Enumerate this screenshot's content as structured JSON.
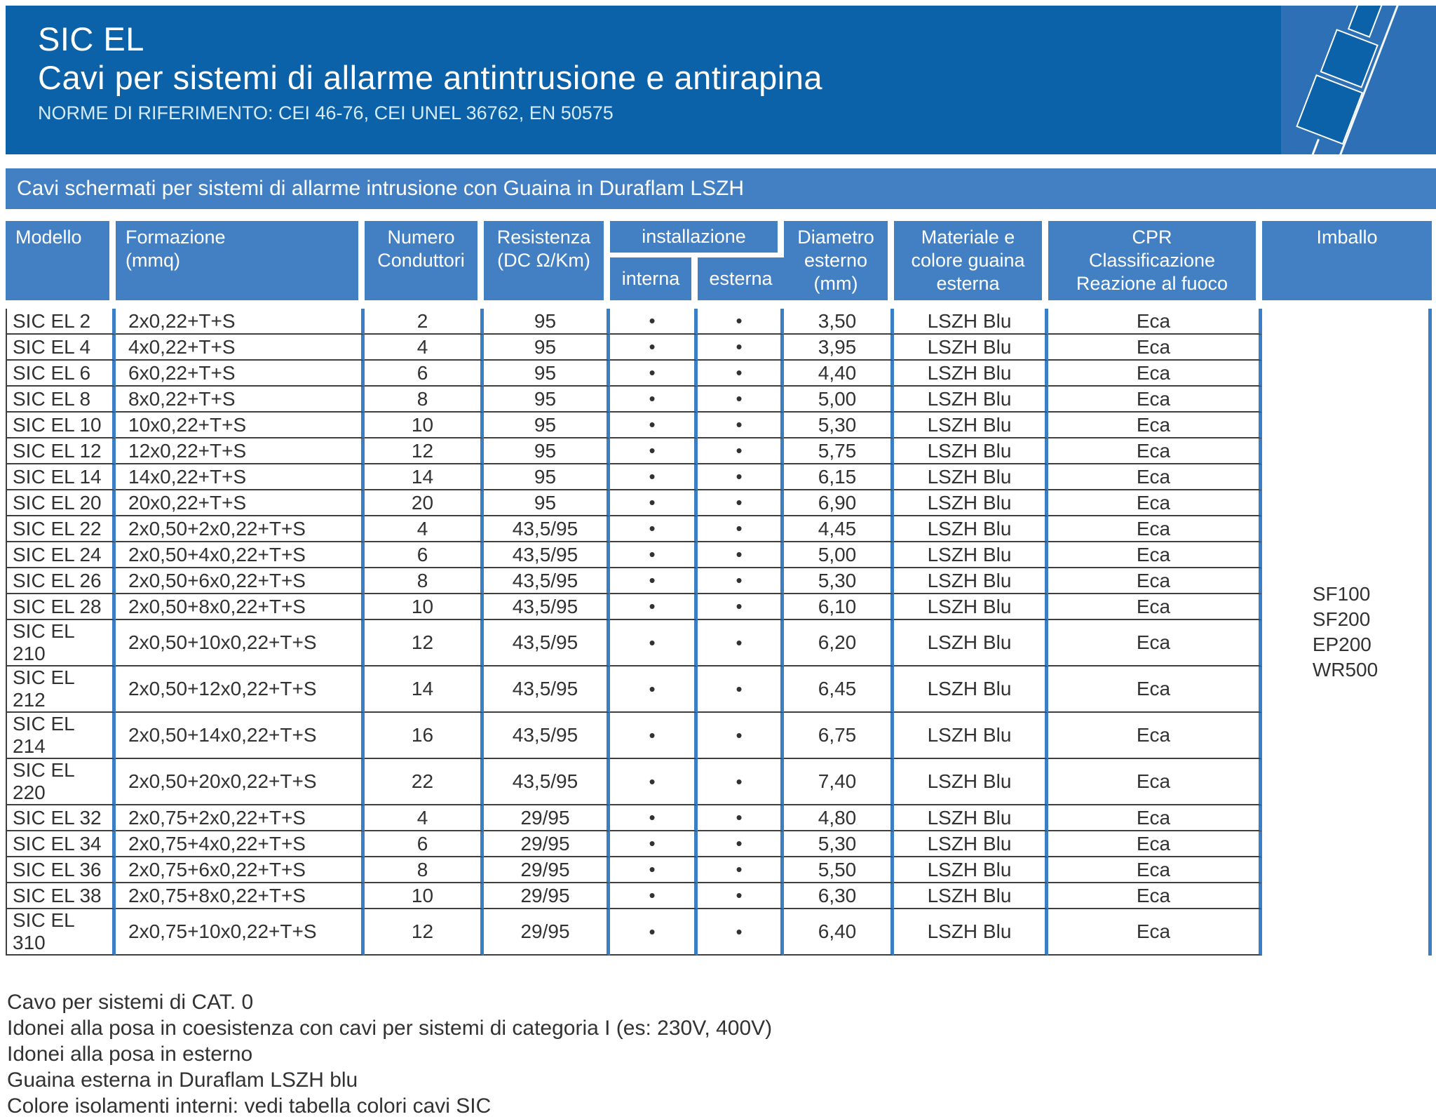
{
  "header": {
    "title": "SIC EL",
    "subtitle": "Cavi per sistemi di allarme antintrusione e antirapina",
    "norms": "NORME DI RIFERIMENTO: CEI 46-76, CEI UNEL 36762, EN 50575"
  },
  "section": {
    "banner": "Cavi schermati per sistemi di allarme intrusione con Guaina in Duraflam LSZH"
  },
  "table": {
    "headers": {
      "modello": "Modello",
      "formazione": "Formazione\n(mmq)",
      "numero_conduttori": "Numero\nConduttori",
      "resistenza": "Resistenza\n(DC Ω/Km)",
      "installazione": "installazione",
      "interna": "interna",
      "esterna": "esterna",
      "diametro": "Diametro\nesterno\n(mm)",
      "materiale": "Materiale e\ncolore guaina\nesterna",
      "cpr": "CPR\nClassificazione\nReazione al fuoco",
      "imballo": "Imballo"
    },
    "bullet": "•",
    "imballo_options": [
      "SF100",
      "SF200",
      "EP200",
      "WR500"
    ],
    "rows": [
      {
        "model": "SIC EL 2",
        "formazione": "2x0,22+T+S",
        "conduttori": "2",
        "resistenza": "95",
        "interna": true,
        "esterna": true,
        "diametro": "3,50",
        "guaina": "LSZH Blu",
        "cpr": "Eca"
      },
      {
        "model": "SIC EL 4",
        "formazione": "4x0,22+T+S",
        "conduttori": "4",
        "resistenza": "95",
        "interna": true,
        "esterna": true,
        "diametro": "3,95",
        "guaina": "LSZH Blu",
        "cpr": "Eca"
      },
      {
        "model": "SIC EL 6",
        "formazione": "6x0,22+T+S",
        "conduttori": "6",
        "resistenza": "95",
        "interna": true,
        "esterna": true,
        "diametro": "4,40",
        "guaina": "LSZH Blu",
        "cpr": "Eca"
      },
      {
        "model": "SIC EL 8",
        "formazione": "8x0,22+T+S",
        "conduttori": "8",
        "resistenza": "95",
        "interna": true,
        "esterna": true,
        "diametro": "5,00",
        "guaina": "LSZH Blu",
        "cpr": "Eca"
      },
      {
        "model": "SIC EL 10",
        "formazione": "10x0,22+T+S",
        "conduttori": "10",
        "resistenza": "95",
        "interna": true,
        "esterna": true,
        "diametro": "5,30",
        "guaina": "LSZH Blu",
        "cpr": "Eca"
      },
      {
        "model": "SIC EL 12",
        "formazione": "12x0,22+T+S",
        "conduttori": "12",
        "resistenza": "95",
        "interna": true,
        "esterna": true,
        "diametro": "5,75",
        "guaina": "LSZH Blu",
        "cpr": "Eca"
      },
      {
        "model": "SIC EL 14",
        "formazione": "14x0,22+T+S",
        "conduttori": "14",
        "resistenza": "95",
        "interna": true,
        "esterna": true,
        "diametro": "6,15",
        "guaina": "LSZH Blu",
        "cpr": "Eca"
      },
      {
        "model": "SIC EL 20",
        "formazione": "20x0,22+T+S",
        "conduttori": "20",
        "resistenza": "95",
        "interna": true,
        "esterna": true,
        "diametro": "6,90",
        "guaina": "LSZH Blu",
        "cpr": "Eca"
      },
      {
        "model": "SIC EL 22",
        "formazione": "2x0,50+2x0,22+T+S",
        "conduttori": "4",
        "resistenza": "43,5/95",
        "interna": true,
        "esterna": true,
        "diametro": "4,45",
        "guaina": "LSZH Blu",
        "cpr": "Eca"
      },
      {
        "model": "SIC EL 24",
        "formazione": "2x0,50+4x0,22+T+S",
        "conduttori": "6",
        "resistenza": "43,5/95",
        "interna": true,
        "esterna": true,
        "diametro": "5,00",
        "guaina": "LSZH Blu",
        "cpr": "Eca"
      },
      {
        "model": "SIC EL 26",
        "formazione": "2x0,50+6x0,22+T+S",
        "conduttori": "8",
        "resistenza": "43,5/95",
        "interna": true,
        "esterna": true,
        "diametro": "5,30",
        "guaina": "LSZH Blu",
        "cpr": "Eca"
      },
      {
        "model": "SIC EL 28",
        "formazione": "2x0,50+8x0,22+T+S",
        "conduttori": "10",
        "resistenza": "43,5/95",
        "interna": true,
        "esterna": true,
        "diametro": "6,10",
        "guaina": "LSZH Blu",
        "cpr": "Eca"
      },
      {
        "model": "SIC EL 210",
        "formazione": "2x0,50+10x0,22+T+S",
        "conduttori": "12",
        "resistenza": "43,5/95",
        "interna": true,
        "esterna": true,
        "diametro": "6,20",
        "guaina": "LSZH Blu",
        "cpr": "Eca"
      },
      {
        "model": "SIC EL 212",
        "formazione": "2x0,50+12x0,22+T+S",
        "conduttori": "14",
        "resistenza": "43,5/95",
        "interna": true,
        "esterna": true,
        "diametro": "6,45",
        "guaina": "LSZH Blu",
        "cpr": "Eca"
      },
      {
        "model": "SIC EL 214",
        "formazione": "2x0,50+14x0,22+T+S",
        "conduttori": "16",
        "resistenza": "43,5/95",
        "interna": true,
        "esterna": true,
        "diametro": "6,75",
        "guaina": "LSZH Blu",
        "cpr": "Eca"
      },
      {
        "model": "SIC EL 220",
        "formazione": "2x0,50+20x0,22+T+S",
        "conduttori": "22",
        "resistenza": "43,5/95",
        "interna": true,
        "esterna": true,
        "diametro": "7,40",
        "guaina": "LSZH Blu",
        "cpr": "Eca"
      },
      {
        "model": "SIC EL 32",
        "formazione": "2x0,75+2x0,22+T+S",
        "conduttori": "4",
        "resistenza": "29/95",
        "interna": true,
        "esterna": true,
        "diametro": "4,80",
        "guaina": "LSZH Blu",
        "cpr": "Eca"
      },
      {
        "model": "SIC EL 34",
        "formazione": "2x0,75+4x0,22+T+S",
        "conduttori": "6",
        "resistenza": "29/95",
        "interna": true,
        "esterna": true,
        "diametro": "5,30",
        "guaina": "LSZH Blu",
        "cpr": "Eca"
      },
      {
        "model": "SIC EL 36",
        "formazione": "2x0,75+6x0,22+T+S",
        "conduttori": "8",
        "resistenza": "29/95",
        "interna": true,
        "esterna": true,
        "diametro": "5,50",
        "guaina": "LSZH Blu",
        "cpr": "Eca"
      },
      {
        "model": "SIC EL 38",
        "formazione": "2x0,75+8x0,22+T+S",
        "conduttori": "10",
        "resistenza": "29/95",
        "interna": true,
        "esterna": true,
        "diametro": "6,30",
        "guaina": "LSZH Blu",
        "cpr": "Eca"
      },
      {
        "model": "SIC EL 310",
        "formazione": "2x0,75+10x0,22+T+S",
        "conduttori": "12",
        "resistenza": "29/95",
        "interna": true,
        "esterna": true,
        "diametro": "6,40",
        "guaina": "LSZH Blu",
        "cpr": "Eca"
      }
    ]
  },
  "notes": {
    "lines": [
      "Cavo per sistemi di CAT. 0",
      "Idonei alla posa in coesistenza con cavi per sistemi di categoria I (es: 230V, 400V)",
      "Idonei alla posa in esterno",
      "Guaina esterna in Duraflam LSZH blu",
      "Colore isolamenti interni: vedi tabella colori cavi SIC"
    ]
  },
  "theme": {
    "dark_blue": "#0b62a9",
    "panel_blue": "#2d70b5",
    "steel_blue": "#4280c3",
    "line_blue": "#3a7ec5",
    "text_dark": "#323232"
  }
}
